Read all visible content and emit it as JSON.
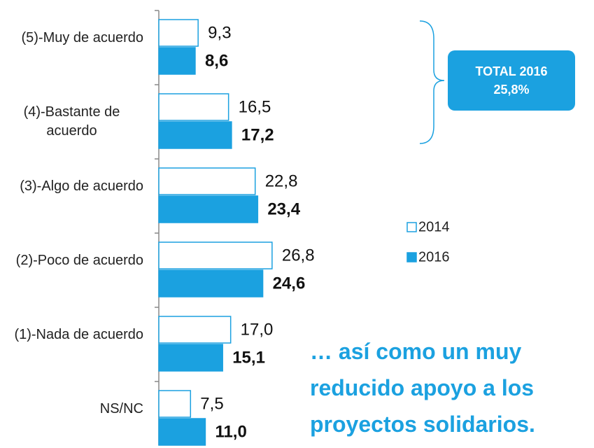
{
  "chart_data": {
    "type": "hbar",
    "categories": [
      "(5)-Muy de acuerdo",
      "(4)-Bastante de acuerdo",
      "(3)-Algo de acuerdo",
      "(2)-Poco de acuerdo",
      "(1)-Nada de acuerdo",
      "NS/NC"
    ],
    "series": [
      {
        "name": "2014",
        "color": "#1ba1e0",
        "values": [
          9.3,
          16.5,
          22.8,
          26.8,
          17.0,
          7.5
        ],
        "value_labels": [
          "9,3",
          "16,5",
          "22,8",
          "26,8",
          "17,0",
          "7,5"
        ]
      },
      {
        "name": "2016",
        "color": "#1ba1e0",
        "values": [
          8.6,
          17.2,
          23.4,
          24.6,
          15.1,
          11.0
        ],
        "value_labels": [
          "8,6",
          "17,2",
          "23,4",
          "24,6",
          "15,1",
          "11,0"
        ]
      }
    ],
    "annotations": {
      "total_label": "TOTAL 2016",
      "total_value": "25,8%",
      "note": "… así como un muy reducido apoyo a los proyectos solidarios."
    }
  }
}
